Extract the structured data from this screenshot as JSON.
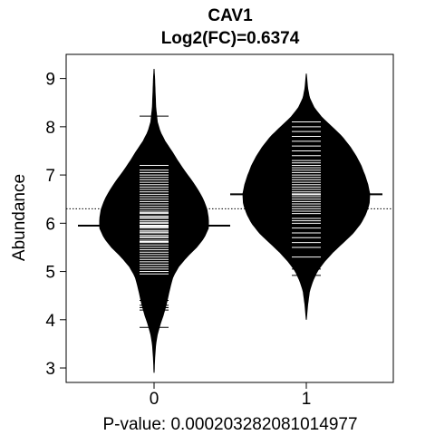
{
  "chart_data": {
    "type": "beanplot",
    "title": "CAV1",
    "subtitle": "Log2(FC)=0.6374",
    "xlabel": "P-value: 0.000203282081014977",
    "ylabel": "Abundance",
    "categories": [
      "0",
      "1"
    ],
    "ylim": [
      2.7,
      9.5
    ],
    "yticks": [
      3,
      4,
      5,
      6,
      7,
      8,
      9
    ],
    "overall_mean": 6.3,
    "grid": false,
    "legend": "none",
    "colors": {
      "bean_fill": "#000000",
      "observation_line": "#ffffff",
      "mean_line": "#000000",
      "overall_line": "#000000",
      "background": "#ffffff"
    },
    "series": [
      {
        "group": "0",
        "mean": 5.95,
        "density": [
          [
            2.9,
            0.0
          ],
          [
            3.2,
            0.01
          ],
          [
            3.5,
            0.03
          ],
          [
            3.7,
            0.06
          ],
          [
            3.9,
            0.11
          ],
          [
            4.1,
            0.17
          ],
          [
            4.3,
            0.22
          ],
          [
            4.5,
            0.26
          ],
          [
            4.7,
            0.3
          ],
          [
            4.9,
            0.35
          ],
          [
            5.1,
            0.45
          ],
          [
            5.3,
            0.6
          ],
          [
            5.5,
            0.78
          ],
          [
            5.7,
            0.92
          ],
          [
            5.9,
            1.0
          ],
          [
            6.1,
            1.0
          ],
          [
            6.3,
            0.97
          ],
          [
            6.5,
            0.9
          ],
          [
            6.7,
            0.8
          ],
          [
            6.9,
            0.68
          ],
          [
            7.1,
            0.55
          ],
          [
            7.3,
            0.43
          ],
          [
            7.5,
            0.32
          ],
          [
            7.7,
            0.2
          ],
          [
            7.9,
            0.11
          ],
          [
            8.1,
            0.06
          ],
          [
            8.4,
            0.03
          ],
          [
            8.7,
            0.02
          ],
          [
            9.0,
            0.01
          ],
          [
            9.2,
            0.0
          ]
        ],
        "observations": [
          3.84,
          4.2,
          4.25,
          4.3,
          4.4,
          4.5,
          4.6,
          4.95,
          5.0,
          5.05,
          5.1,
          5.15,
          5.2,
          5.25,
          5.3,
          5.35,
          5.4,
          5.45,
          5.5,
          5.55,
          5.6,
          5.62,
          5.65,
          5.7,
          5.72,
          5.75,
          5.8,
          5.82,
          5.85,
          5.9,
          5.92,
          5.95,
          6.0,
          6.02,
          6.05,
          6.1,
          6.12,
          6.15,
          6.2,
          6.22,
          6.25,
          6.3,
          6.35,
          6.4,
          6.45,
          6.5,
          6.55,
          6.6,
          6.65,
          6.7,
          6.75,
          6.8,
          6.85,
          6.9,
          6.95,
          7.0,
          7.05,
          7.1,
          7.2,
          7.6,
          8.22
        ]
      },
      {
        "group": "1",
        "mean": 6.6,
        "density": [
          [
            4.0,
            0.0
          ],
          [
            4.3,
            0.02
          ],
          [
            4.6,
            0.05
          ],
          [
            4.8,
            0.1
          ],
          [
            5.0,
            0.17
          ],
          [
            5.2,
            0.28
          ],
          [
            5.4,
            0.42
          ],
          [
            5.6,
            0.58
          ],
          [
            5.8,
            0.74
          ],
          [
            6.0,
            0.86
          ],
          [
            6.2,
            0.94
          ],
          [
            6.4,
            0.99
          ],
          [
            6.6,
            1.0
          ],
          [
            6.8,
            0.97
          ],
          [
            7.0,
            0.92
          ],
          [
            7.2,
            0.86
          ],
          [
            7.4,
            0.78
          ],
          [
            7.6,
            0.68
          ],
          [
            7.8,
            0.56
          ],
          [
            8.0,
            0.4
          ],
          [
            8.2,
            0.24
          ],
          [
            8.4,
            0.12
          ],
          [
            8.6,
            0.05
          ],
          [
            8.8,
            0.02
          ],
          [
            9.1,
            0.0
          ]
        ],
        "observations": [
          4.92,
          5.05,
          5.3,
          5.5,
          5.6,
          5.7,
          5.8,
          5.9,
          6.0,
          6.05,
          6.1,
          6.2,
          6.25,
          6.3,
          6.35,
          6.4,
          6.45,
          6.5,
          6.55,
          6.6,
          6.65,
          6.7,
          6.75,
          6.8,
          6.85,
          6.9,
          6.95,
          7.0,
          7.05,
          7.1,
          7.15,
          7.2,
          7.25,
          7.3,
          7.4,
          7.5,
          7.6,
          7.7,
          7.8,
          7.9,
          8.0,
          8.1
        ]
      }
    ]
  }
}
